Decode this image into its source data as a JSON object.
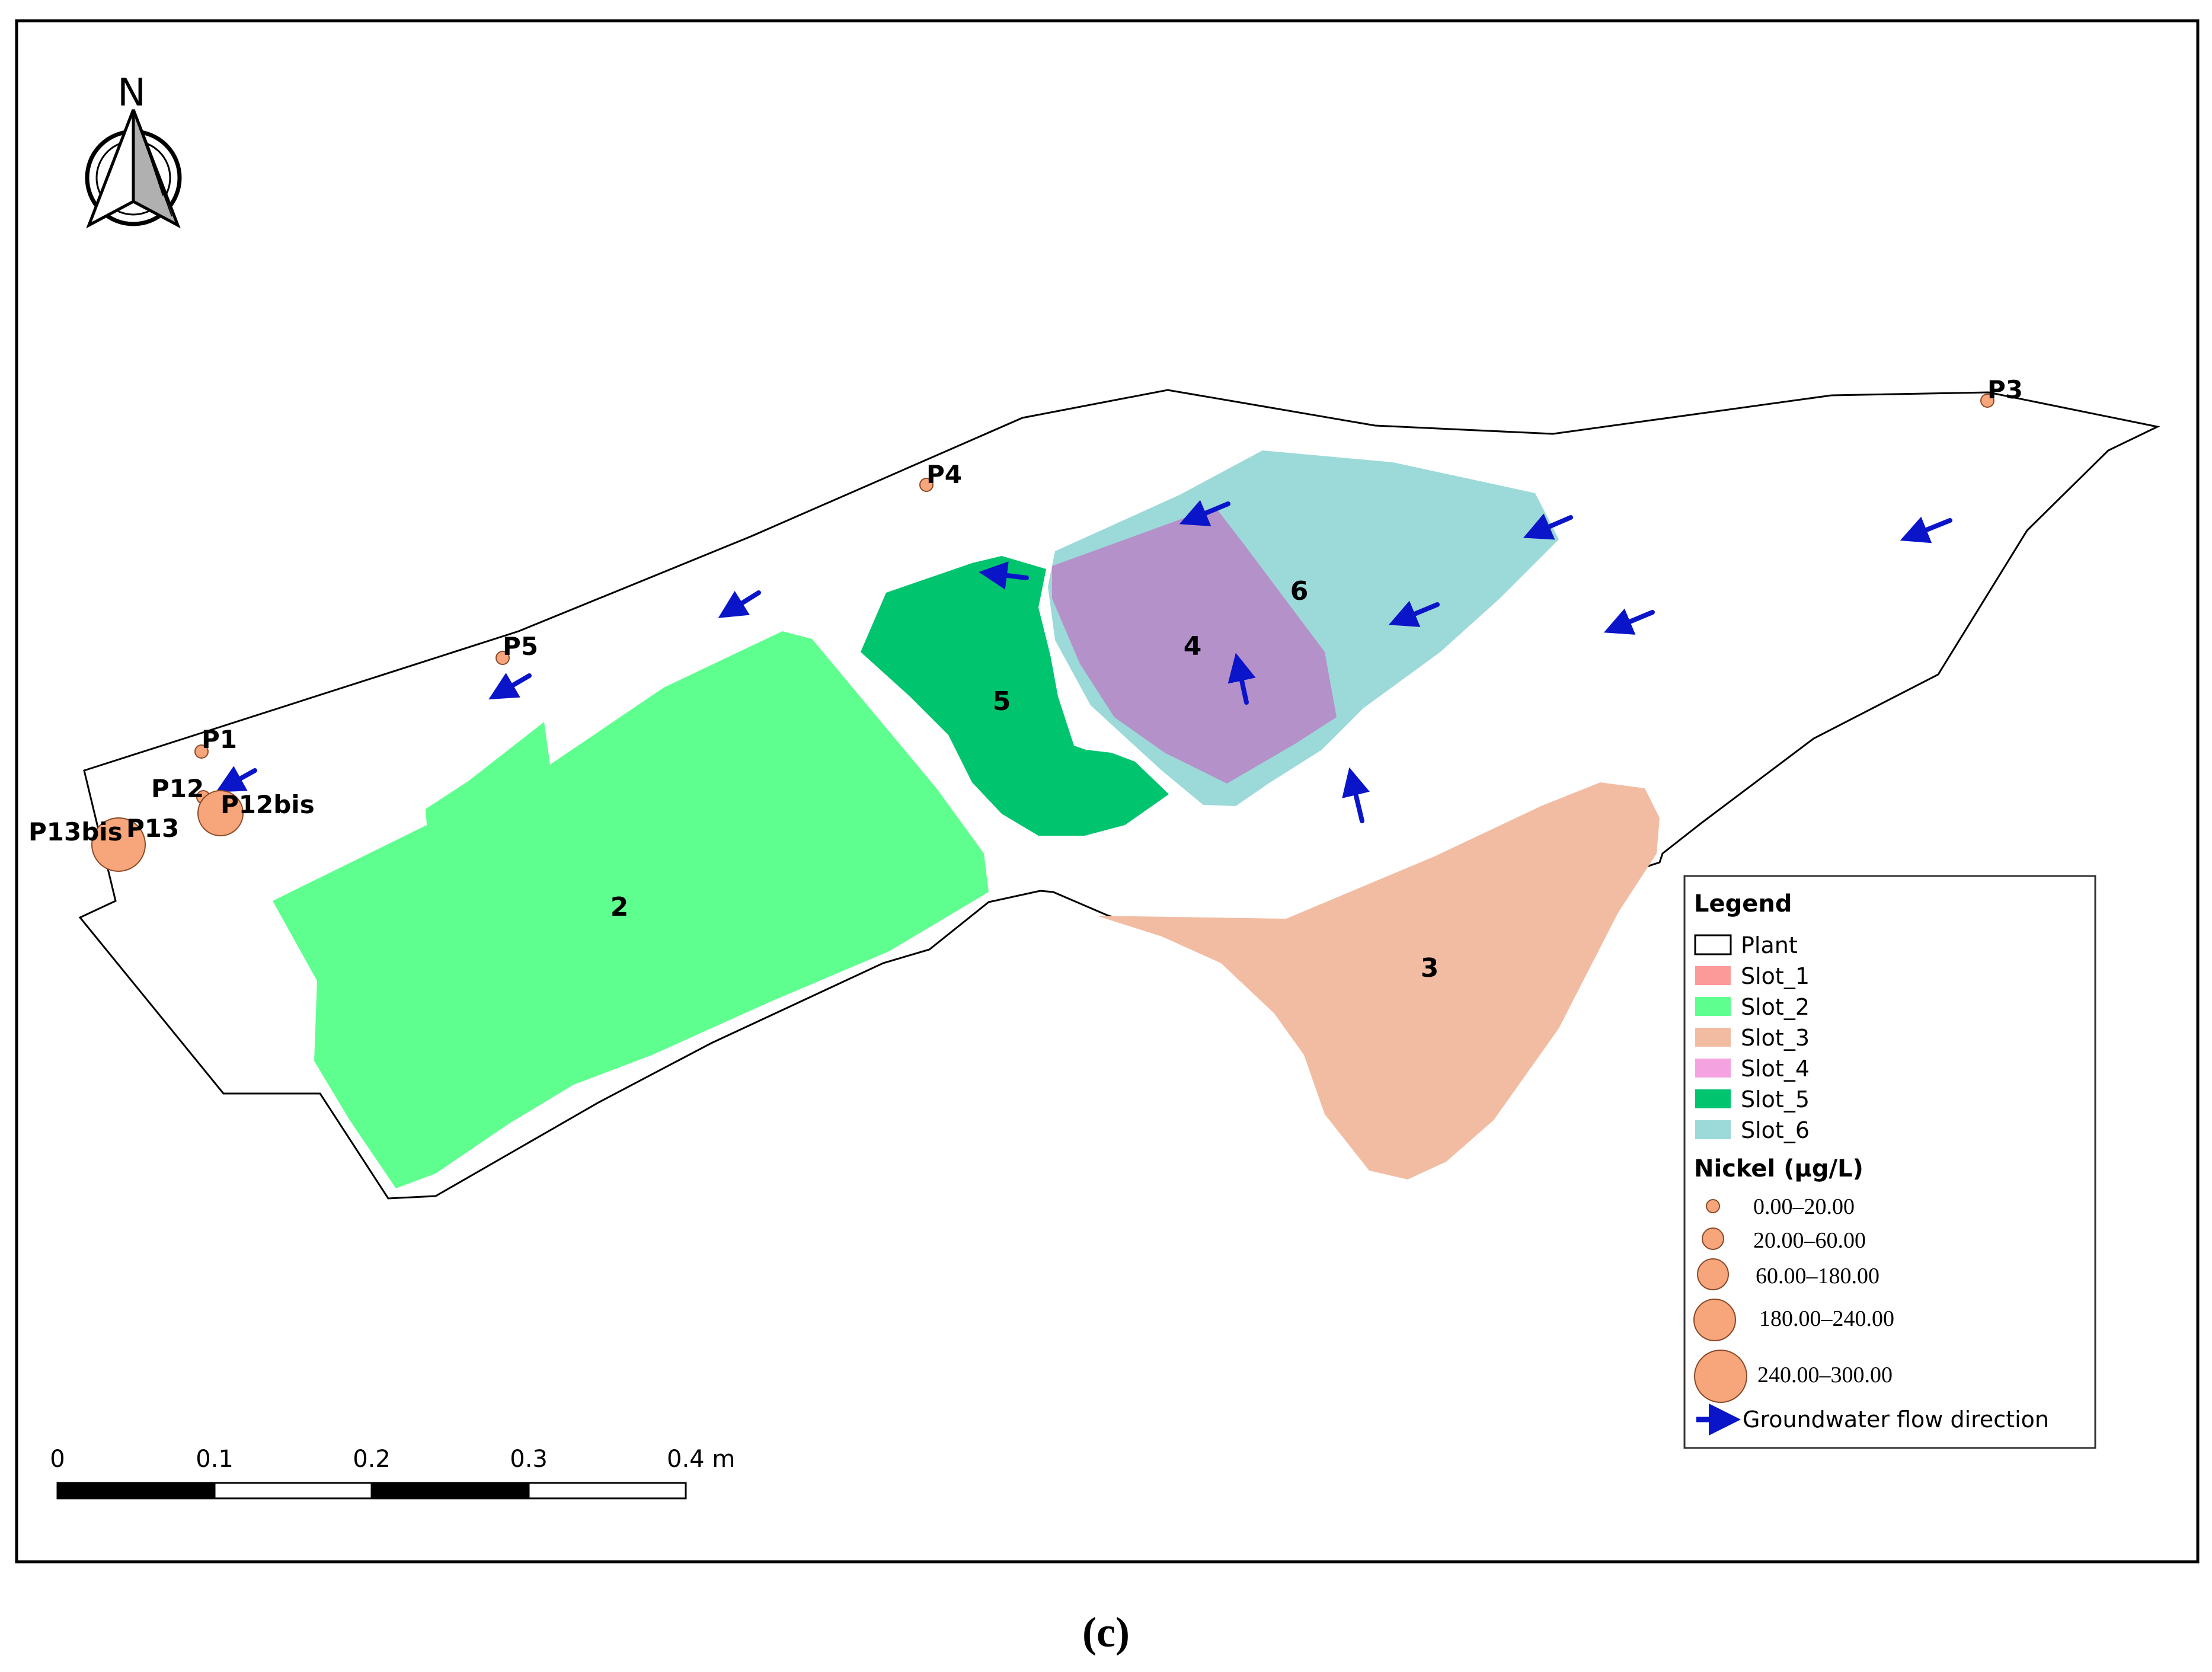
{
  "colors": {
    "frame": "#000000",
    "plant_fill": "#ffffff",
    "slot_1": "#fb9a99",
    "slot_2": "#5fff8f",
    "slot_3": "#f2bca3",
    "slot_4": "#f5a3e0",
    "slot_4_map": "#b591c9",
    "slot_5": "#00c46e",
    "slot_6": "#9cd9d9",
    "well": "#f7a57a",
    "arrow": "#0a14c8"
  },
  "north": {
    "label": "N",
    "icon": "north-arrow-icon"
  },
  "areas": [
    {
      "key": "slot_2",
      "label": "2"
    },
    {
      "key": "slot_5",
      "label": "5"
    },
    {
      "key": "slot_6",
      "label": "6"
    },
    {
      "key": "slot_4",
      "label": "4"
    },
    {
      "key": "slot_3",
      "label": "3"
    }
  ],
  "wells": [
    {
      "name": "P1",
      "nickel_class": 1
    },
    {
      "name": "P3",
      "nickel_class": 1
    },
    {
      "name": "P4",
      "nickel_class": 1
    },
    {
      "name": "P5",
      "nickel_class": 1
    },
    {
      "name": "P12",
      "nickel_class": 1
    },
    {
      "name": "P12bis",
      "nickel_class": 4
    },
    {
      "name": "P13",
      "nickel_class": 1
    },
    {
      "name": "P13bis",
      "nickel_class": 5
    }
  ],
  "legend": {
    "title": "Legend",
    "layers": [
      "Plant",
      "Slot_1",
      "Slot_2",
      "Slot_3",
      "Slot_4",
      "Slot_5",
      "Slot_6"
    ],
    "nickel_title": "Nickel (μg/L)",
    "nickel_classes": [
      "0.00–20.00",
      "20.00–60.00",
      "60.00–180.00",
      "180.00–240.00",
      "240.00–300.00"
    ],
    "flow_label": "Groundwater flow direction"
  },
  "scale_bar": {
    "ticks": [
      "0",
      "0.1",
      "0.2",
      "0.3",
      "0.4 m"
    ]
  },
  "caption": "(c)"
}
